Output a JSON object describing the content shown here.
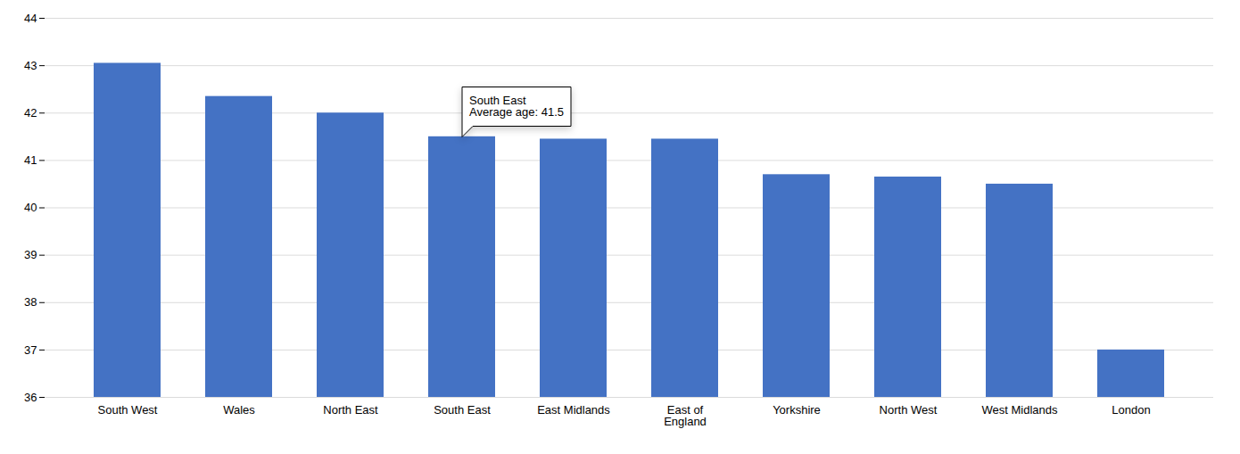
{
  "chart_data": {
    "type": "bar",
    "categories": [
      "South West",
      "Wales",
      "North East",
      "South East",
      "East Midlands",
      "East of\nEngland",
      "Yorkshire",
      "North West",
      "West Midlands",
      "London"
    ],
    "values": [
      43.05,
      42.35,
      42.0,
      41.5,
      41.45,
      41.45,
      40.7,
      40.65,
      40.5,
      37.0
    ],
    "color": "#4472C4",
    "ylim": [
      36,
      44
    ],
    "yticks": [
      36,
      37,
      38,
      39,
      40,
      41,
      42,
      43,
      44
    ],
    "grid": true,
    "annotations": [
      {
        "category": "South East",
        "lines": [
          "South East",
          "Average age: 41.5"
        ]
      }
    ]
  }
}
